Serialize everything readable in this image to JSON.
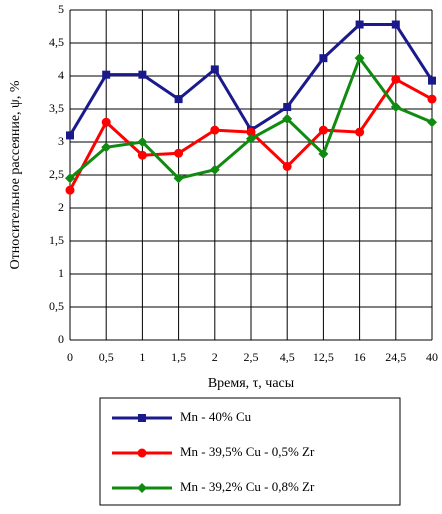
{
  "chart_data": {
    "type": "line",
    "y_label": "Относительное рассеяние, ψ, %",
    "x_label": "Время, τ, часы",
    "categories": [
      "0",
      "0,5",
      "1",
      "1,5",
      "2",
      "2,5",
      "4,5",
      "12,5",
      "16",
      "24,5",
      "40"
    ],
    "series": [
      {
        "name": "Mn - 40% Cu",
        "color": "#1a1a8c",
        "marker": "square",
        "values": [
          3.1,
          4.02,
          4.02,
          3.65,
          4.1,
          3.18,
          3.53,
          4.27,
          4.78,
          4.78,
          3.93
        ]
      },
      {
        "name": "Mn - 39,5% Cu - 0,5% Zr",
        "color": "#ff0000",
        "marker": "circle",
        "values": [
          2.27,
          3.3,
          2.8,
          2.83,
          3.18,
          3.15,
          2.63,
          3.18,
          3.15,
          3.95,
          3.65
        ]
      },
      {
        "name": "Mn - 39,2% Cu - 0,8% Zr",
        "color": "#108a10",
        "marker": "diamond",
        "values": [
          2.45,
          2.92,
          3.0,
          2.45,
          2.58,
          3.05,
          3.35,
          2.82,
          4.27,
          3.53,
          3.3
        ]
      }
    ],
    "ylim": [
      0,
      5
    ],
    "yticks": [
      0,
      {
        "value": 0.5,
        "label": "0,5"
      },
      1,
      {
        "value": 1.5,
        "label": "1,5"
      },
      2,
      {
        "value": 2.5,
        "label": "2,5"
      },
      3,
      {
        "value": 3.5,
        "label": "3,5"
      },
      4,
      {
        "value": 4.5,
        "label": "4,5"
      },
      5
    ],
    "grid": true
  }
}
